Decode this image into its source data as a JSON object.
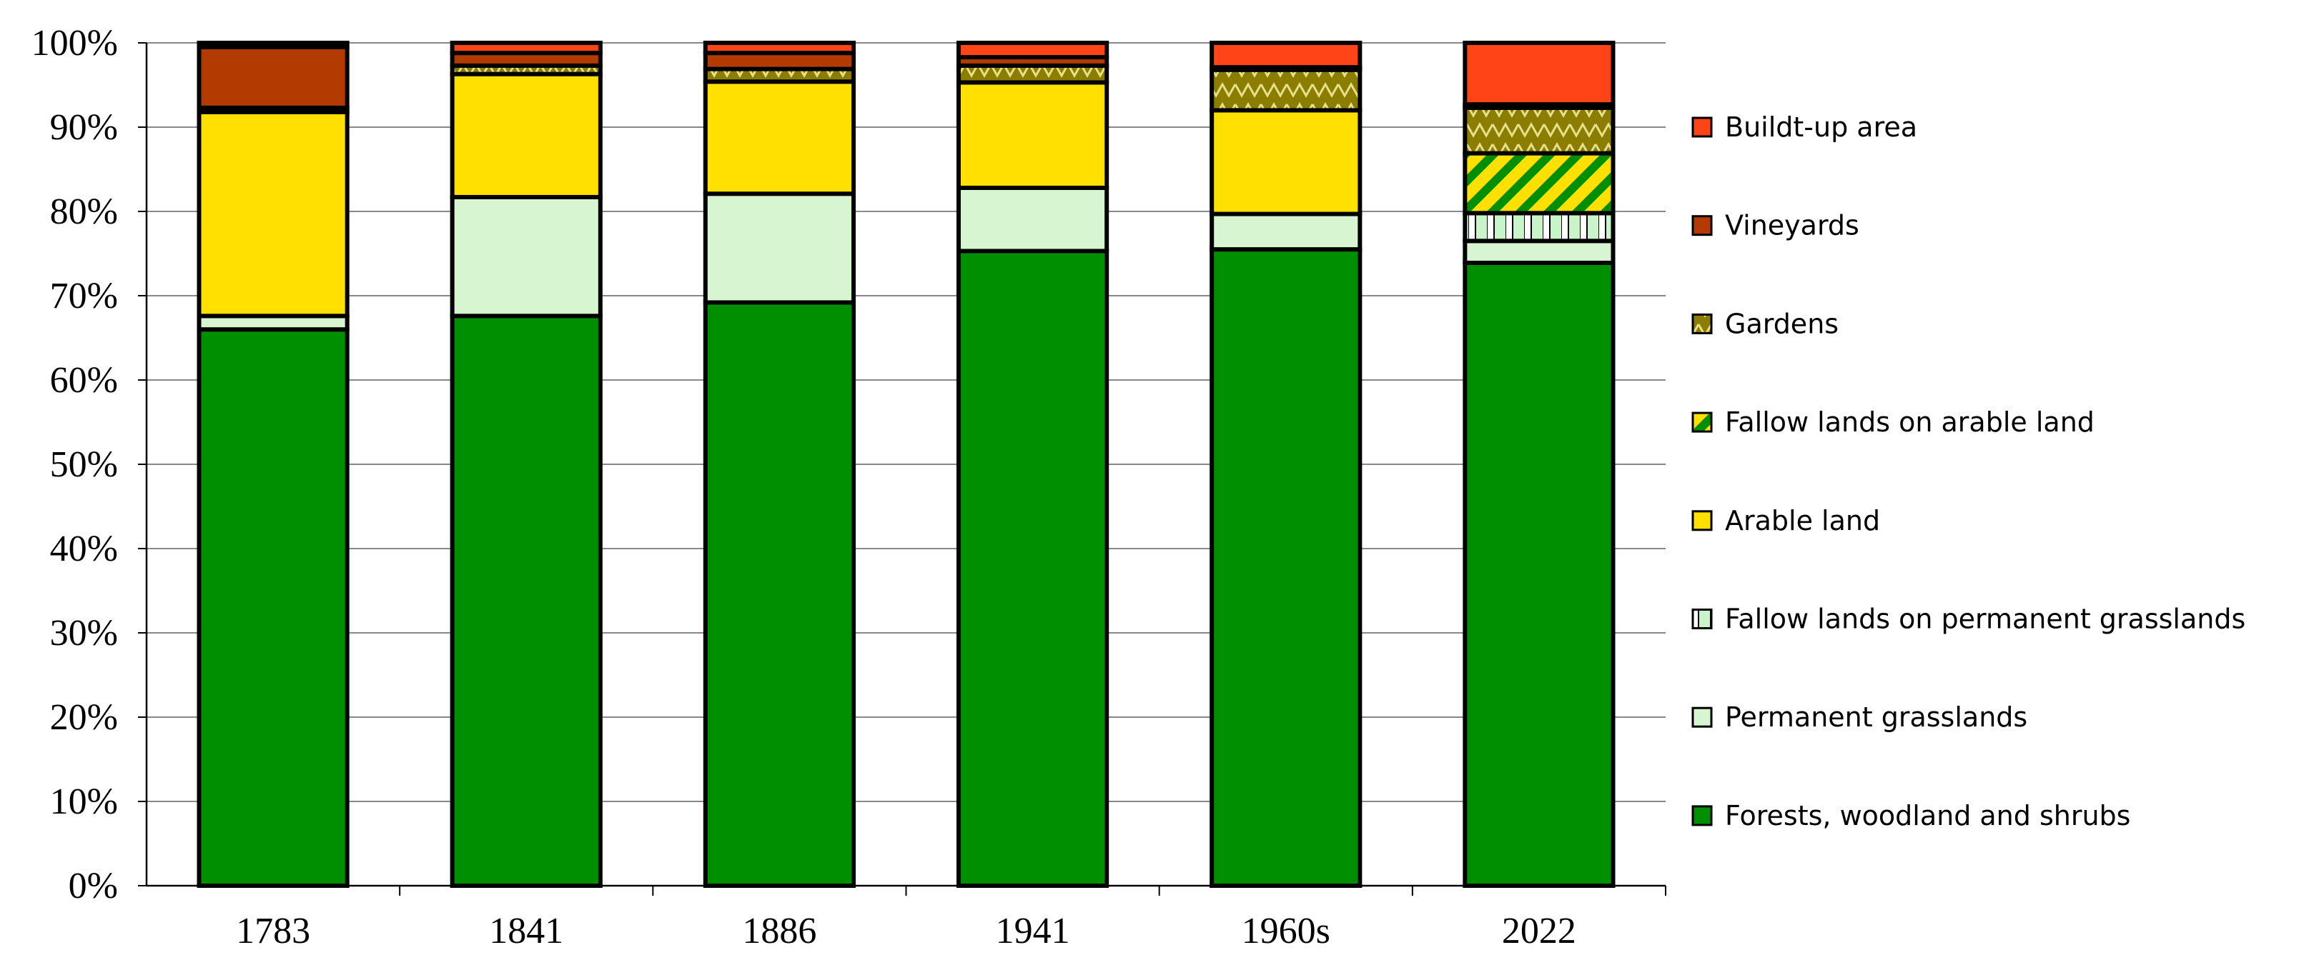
{
  "chart_data": {
    "type": "bar",
    "stacked": true,
    "title": "",
    "xlabel": "",
    "ylabel": "",
    "ylim": [
      0,
      100
    ],
    "y_ticks": [
      "0%",
      "10%",
      "20%",
      "30%",
      "40%",
      "50%",
      "60%",
      "70%",
      "80%",
      "90%",
      "100%"
    ],
    "categories": [
      "1783",
      "1841",
      "1886",
      "1941",
      "1960s",
      "2022"
    ],
    "grid": true,
    "legend_position": "right",
    "series": [
      {
        "name": "Forests, woodland and shrubs",
        "color": "#008f00",
        "pattern": "solid",
        "values": [
          66.0,
          67.6,
          69.2,
          75.3,
          75.5,
          73.9
        ]
      },
      {
        "name": "Permanent grasslands",
        "color": "#d6f5d0",
        "pattern": "solid",
        "values": [
          1.6,
          14.1,
          12.9,
          7.5,
          4.2,
          2.6
        ]
      },
      {
        "name": "Fallow lands on permanent grasslands",
        "color": "#c8f5c8",
        "pattern": "vertical-stripes",
        "values": [
          0,
          0,
          0,
          0,
          0,
          3.3
        ]
      },
      {
        "name": "Arable land",
        "color": "#ffe000",
        "pattern": "solid",
        "values": [
          24.2,
          14.6,
          13.3,
          12.5,
          12.3,
          0
        ]
      },
      {
        "name": "Fallow lands on arable land",
        "color": "#ffe000",
        "pattern": "diagonal-stripes",
        "values": [
          0,
          0,
          0,
          0,
          0,
          7.1
        ]
      },
      {
        "name": "Gardens",
        "color": "#8b7d00",
        "pattern": "zigzag",
        "values": [
          0.5,
          1.0,
          1.5,
          2.0,
          4.8,
          5.4
        ]
      },
      {
        "name": "Vineyards",
        "color": "#b33a00",
        "pattern": "solid",
        "values": [
          7.2,
          1.5,
          1.9,
          1.0,
          0.3,
          0.4
        ]
      },
      {
        "name": "Buildt-up area",
        "color": "#ff4418",
        "pattern": "solid",
        "values": [
          0.5,
          1.2,
          1.2,
          1.7,
          2.9,
          7.3
        ]
      }
    ],
    "legend_order": [
      "Buildt-up area",
      "Vineyards",
      "Gardens",
      "Fallow lands on arable land",
      "Arable land",
      "Fallow lands on permanent grasslands",
      "Permanent grasslands",
      "Forests, woodland and shrubs"
    ]
  }
}
